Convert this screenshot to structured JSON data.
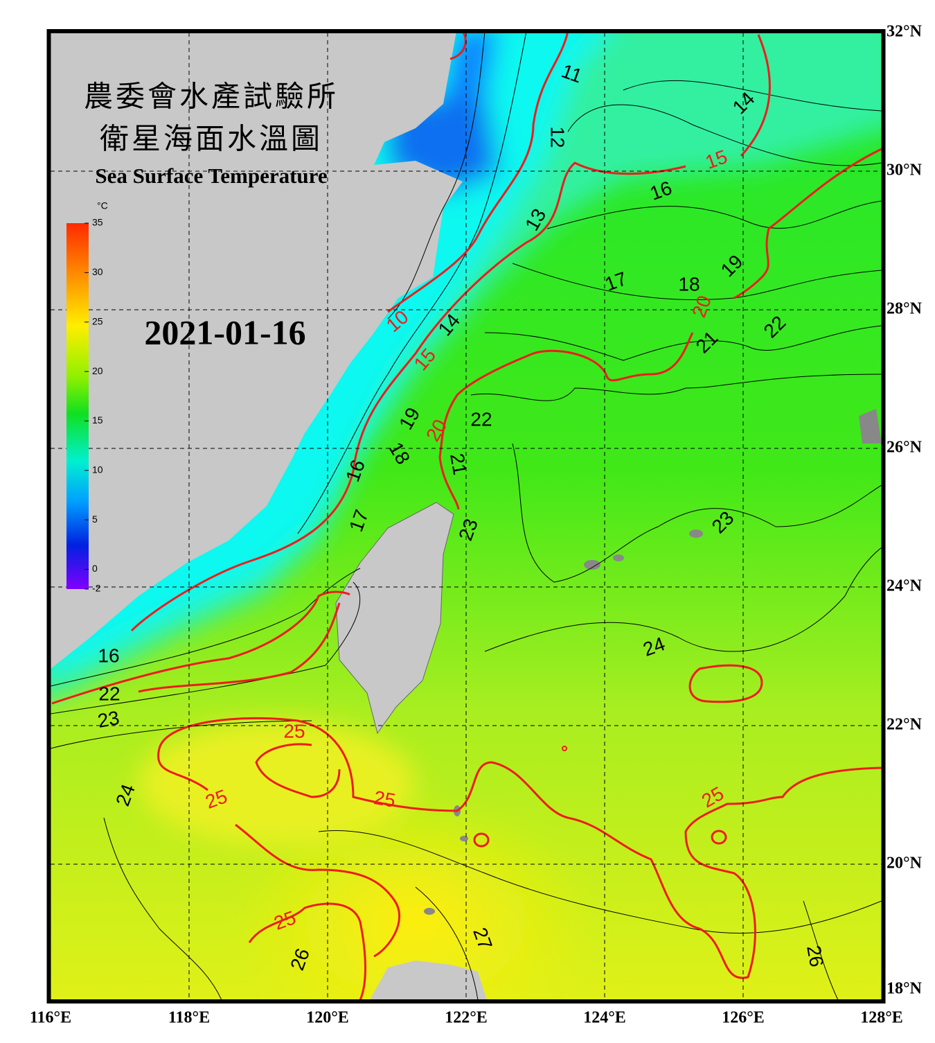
{
  "header": {
    "title_zh_1": "農委會水產試驗所",
    "title_zh_2": "衛星海面水溫圖",
    "title_en": "Sea Surface Temperature",
    "date": "2021-01-16"
  },
  "colorbar": {
    "unit": "°C",
    "range": [
      -2,
      35
    ],
    "ticks": [
      35,
      30,
      25,
      20,
      15,
      10,
      5,
      0,
      -2
    ]
  },
  "map": {
    "xlim": [
      116,
      128
    ],
    "ylim": [
      18,
      32
    ],
    "xticks": [
      {
        "value": 116,
        "label": "116°E"
      },
      {
        "value": 118,
        "label": "118°E"
      },
      {
        "value": 120,
        "label": "120°E"
      },
      {
        "value": 122,
        "label": "122°E"
      },
      {
        "value": 124,
        "label": "124°E"
      },
      {
        "value": 126,
        "label": "126°E"
      },
      {
        "value": 128,
        "label": "128°E"
      }
    ],
    "yticks": [
      {
        "value": 32,
        "label": "32°N"
      },
      {
        "value": 30,
        "label": "30°N"
      },
      {
        "value": 28,
        "label": "28°N"
      },
      {
        "value": 26,
        "label": "26°N"
      },
      {
        "value": 24,
        "label": "24°N"
      },
      {
        "value": 22,
        "label": "22°N"
      },
      {
        "value": 20,
        "label": "20°N"
      },
      {
        "value": 18,
        "label": "18°N"
      }
    ],
    "contour_labels": [
      11,
      14,
      12,
      15,
      16,
      13,
      19,
      17,
      18,
      20,
      10,
      14,
      22,
      21,
      15,
      19,
      20,
      22,
      18,
      16,
      21,
      17,
      23,
      23,
      24,
      16,
      22,
      23,
      25,
      24,
      25,
      25,
      25,
      25,
      26,
      27,
      26
    ]
  }
}
